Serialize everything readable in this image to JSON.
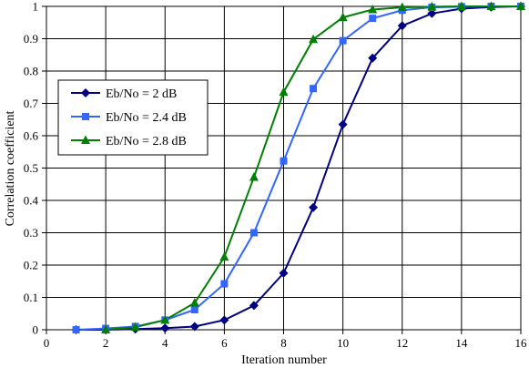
{
  "chart_data": {
    "type": "line",
    "title": "",
    "xlabel": "Iteration number",
    "ylabel": "Correlation coefficient",
    "xlim": [
      0,
      16
    ],
    "ylim": [
      0,
      1
    ],
    "x_ticks": [
      0,
      2,
      4,
      6,
      8,
      10,
      12,
      14,
      16
    ],
    "y_ticks": [
      0,
      0.1,
      0.2,
      0.3,
      0.4,
      0.5,
      0.6,
      0.7,
      0.8,
      0.9,
      1
    ],
    "x_tick_labels": [
      "0",
      "2",
      "4",
      "6",
      "8",
      "10",
      "12",
      "14",
      "16"
    ],
    "y_tick_labels": [
      "0",
      "0.1",
      "0.2",
      "0.3",
      "0.4",
      "0.5",
      "0.6",
      "0.7",
      "0.8",
      "0.9",
      "1"
    ],
    "grid": true,
    "legend_position": "left",
    "series": [
      {
        "name": "Eb/No = 2 dB",
        "marker": "diamond",
        "color": "#000080",
        "x": [
          1,
          2,
          3,
          4,
          5,
          6,
          7,
          8,
          9,
          10,
          11,
          12,
          13,
          14,
          15,
          16
        ],
        "values": [
          0.0,
          0.0,
          0.002,
          0.005,
          0.01,
          0.03,
          0.075,
          0.175,
          0.378,
          0.635,
          0.84,
          0.94,
          0.978,
          0.993,
          0.998,
          1.0
        ]
      },
      {
        "name": "Eb/No = 2.4 dB",
        "marker": "square",
        "color": "#3366FF",
        "x": [
          1,
          2,
          3,
          4,
          5,
          6,
          7,
          8,
          9,
          10,
          11,
          12,
          13,
          14,
          15,
          16
        ],
        "values": [
          0.0,
          0.004,
          0.01,
          0.03,
          0.062,
          0.142,
          0.3,
          0.522,
          0.746,
          0.894,
          0.963,
          0.988,
          0.997,
          0.999,
          1.0,
          1.0
        ]
      },
      {
        "name": "Eb/No = 2.8 dB",
        "marker": "triangle",
        "color": "#008000",
        "x": [
          2,
          3,
          4,
          5,
          6,
          7,
          8,
          9,
          10,
          11,
          12,
          13,
          14,
          15,
          16
        ],
        "values": [
          0.0,
          0.008,
          0.03,
          0.083,
          0.225,
          0.472,
          0.735,
          0.898,
          0.966,
          0.99,
          0.997,
          0.999,
          1.0,
          1.0,
          1.0
        ]
      }
    ]
  }
}
